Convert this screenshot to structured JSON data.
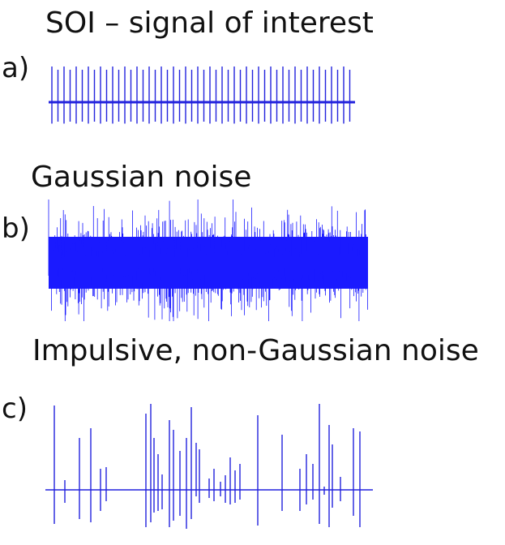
{
  "panels": [
    {
      "letter": "a)",
      "title": "SOI – signal of interest",
      "kind": "periodic-pulse-train"
    },
    {
      "letter": "b)",
      "title": "Gaussian noise",
      "kind": "gaussian-noise"
    },
    {
      "letter": "c)",
      "title": "Impulsive, non-Gaussian noise",
      "kind": "impulsive-noise"
    }
  ],
  "colors": {
    "signal": "#2222dd",
    "noise_fill": "#1a1aff",
    "text": "#111111"
  }
}
